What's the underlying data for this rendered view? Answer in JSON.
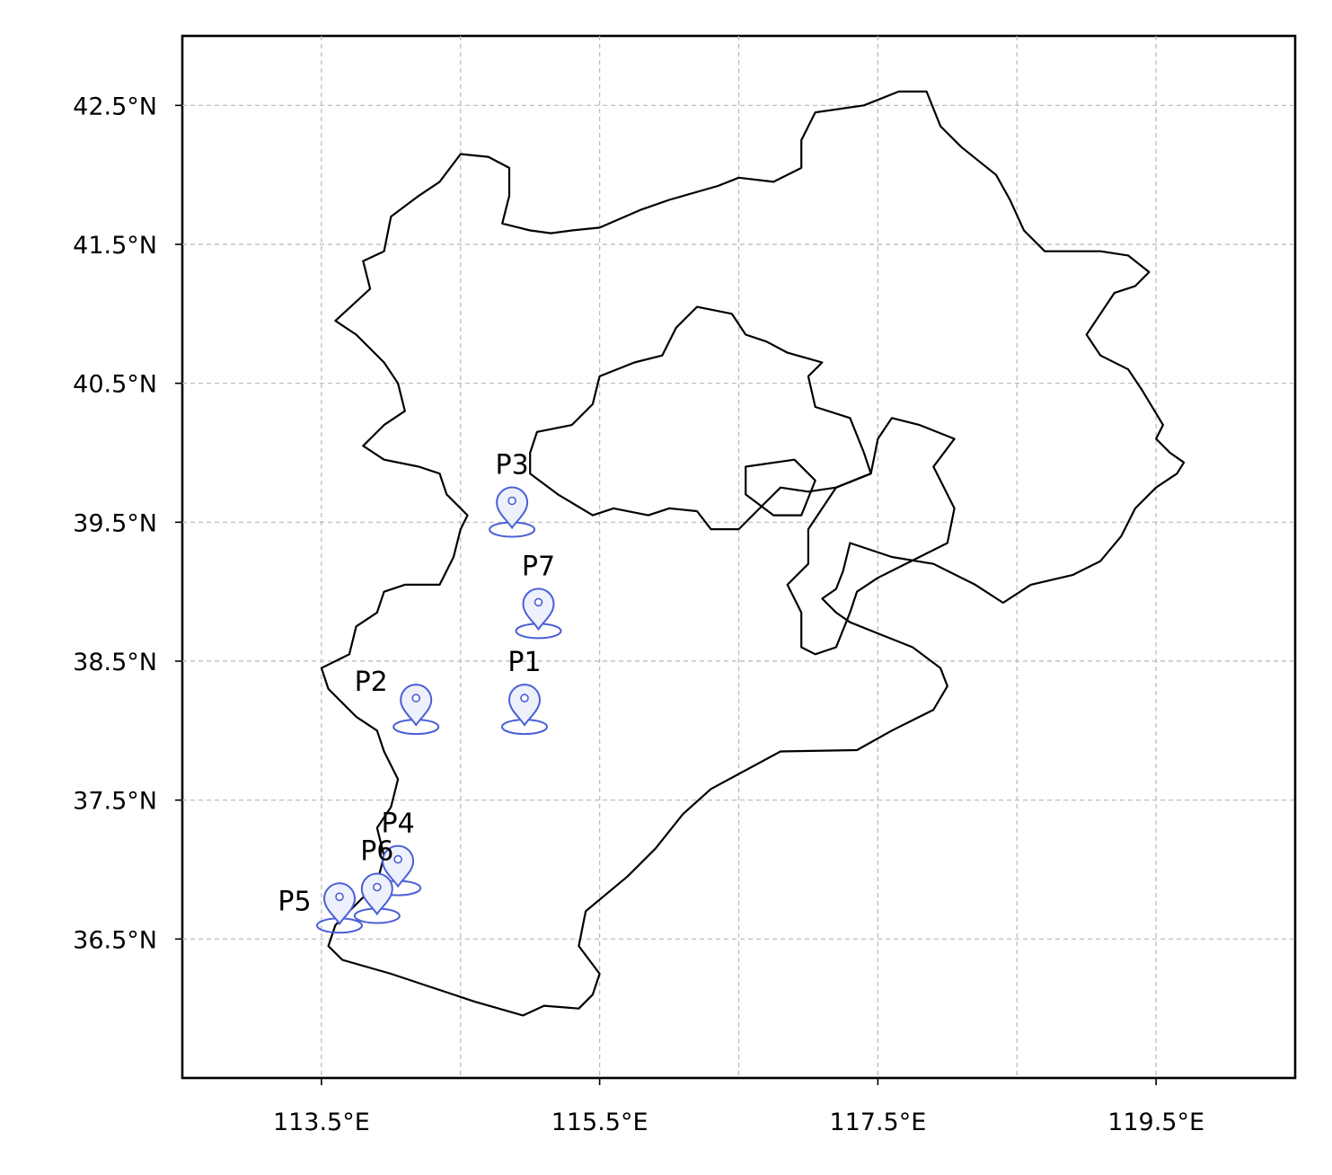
{
  "map": {
    "lon_range": [
      112.5,
      120.5
    ],
    "lat_range": [
      35.5,
      43.0
    ],
    "gridlines": true,
    "x_ticks": [
      {
        "value": 113.5,
        "label": "113.5°E"
      },
      {
        "value": 115.5,
        "label": "115.5°E"
      },
      {
        "value": 117.5,
        "label": "117.5°E"
      },
      {
        "value": 119.5,
        "label": "119.5°E"
      }
    ],
    "y_ticks": [
      {
        "value": 42.5,
        "label": "42.5°N"
      },
      {
        "value": 41.5,
        "label": "41.5°N"
      },
      {
        "value": 40.5,
        "label": "40.5°N"
      },
      {
        "value": 39.5,
        "label": "39.5°N"
      },
      {
        "value": 38.5,
        "label": "38.5°N"
      },
      {
        "value": 37.5,
        "label": "37.5°N"
      },
      {
        "value": 36.5,
        "label": "36.5°N"
      }
    ],
    "marker_icon": "map-pin-icon",
    "marker_color": "#4a5fd6",
    "boundaries": [
      {
        "name": "hebei-outline",
        "points": [
          [
            113.9,
            37.3
          ],
          [
            113.95,
            37.1
          ],
          [
            113.9,
            36.9
          ],
          [
            113.8,
            36.8
          ],
          [
            113.7,
            36.7
          ],
          [
            113.6,
            36.6
          ],
          [
            113.55,
            36.45
          ],
          [
            113.65,
            36.35
          ],
          [
            114.0,
            36.25
          ],
          [
            114.3,
            36.15
          ],
          [
            114.6,
            36.05
          ],
          [
            114.95,
            35.95
          ],
          [
            115.1,
            36.02
          ],
          [
            115.35,
            36.0
          ],
          [
            115.45,
            36.1
          ],
          [
            115.5,
            36.25
          ],
          [
            115.35,
            36.45
          ],
          [
            115.4,
            36.7
          ],
          [
            115.7,
            36.95
          ],
          [
            115.9,
            37.15
          ],
          [
            116.1,
            37.4
          ],
          [
            116.3,
            37.58
          ],
          [
            116.8,
            37.85
          ],
          [
            117.35,
            37.86
          ],
          [
            117.6,
            38.0
          ],
          [
            117.9,
            38.15
          ],
          [
            118.0,
            38.32
          ],
          [
            117.95,
            38.45
          ],
          [
            117.75,
            38.6
          ],
          [
            117.5,
            38.7
          ],
          [
            117.3,
            38.78
          ],
          [
            117.2,
            38.85
          ],
          [
            117.1,
            38.95
          ],
          [
            117.2,
            39.02
          ],
          [
            117.25,
            39.15
          ],
          [
            117.3,
            39.35
          ],
          [
            117.6,
            39.25
          ],
          [
            117.9,
            39.2
          ],
          [
            118.2,
            39.05
          ],
          [
            118.4,
            38.92
          ],
          [
            118.6,
            39.05
          ],
          [
            118.9,
            39.12
          ],
          [
            119.1,
            39.22
          ],
          [
            119.25,
            39.4
          ],
          [
            119.35,
            39.6
          ],
          [
            119.5,
            39.75
          ],
          [
            119.65,
            39.85
          ],
          [
            119.7,
            39.93
          ],
          [
            119.6,
            40.0
          ],
          [
            119.5,
            40.1
          ],
          [
            119.55,
            40.2
          ],
          [
            119.4,
            40.45
          ],
          [
            119.3,
            40.6
          ],
          [
            119.1,
            40.7
          ],
          [
            119.0,
            40.85
          ],
          [
            119.1,
            41.0
          ],
          [
            119.2,
            41.15
          ],
          [
            119.35,
            41.2
          ],
          [
            119.45,
            41.3
          ],
          [
            119.3,
            41.42
          ],
          [
            119.1,
            41.45
          ],
          [
            118.9,
            41.45
          ],
          [
            118.7,
            41.45
          ],
          [
            118.55,
            41.6
          ],
          [
            118.45,
            41.82
          ],
          [
            118.35,
            42.0
          ],
          [
            118.1,
            42.2
          ],
          [
            117.95,
            42.35
          ],
          [
            117.85,
            42.6
          ],
          [
            117.65,
            42.6
          ],
          [
            117.4,
            42.5
          ],
          [
            117.05,
            42.45
          ],
          [
            116.95,
            42.25
          ],
          [
            116.95,
            42.05
          ],
          [
            116.75,
            41.95
          ],
          [
            116.5,
            41.98
          ],
          [
            116.35,
            41.92
          ],
          [
            116.0,
            41.82
          ],
          [
            115.8,
            41.75
          ],
          [
            115.5,
            41.62
          ],
          [
            115.3,
            41.6
          ],
          [
            115.15,
            41.58
          ],
          [
            115.0,
            41.6
          ],
          [
            114.8,
            41.65
          ],
          [
            114.85,
            41.85
          ],
          [
            114.85,
            42.05
          ],
          [
            114.7,
            42.13
          ],
          [
            114.5,
            42.15
          ],
          [
            114.35,
            41.95
          ],
          [
            114.2,
            41.85
          ],
          [
            114.0,
            41.7
          ],
          [
            113.95,
            41.45
          ],
          [
            113.8,
            41.38
          ],
          [
            113.85,
            41.18
          ],
          [
            113.6,
            40.95
          ],
          [
            113.75,
            40.85
          ],
          [
            113.95,
            40.65
          ],
          [
            114.05,
            40.5
          ],
          [
            114.1,
            40.3
          ],
          [
            113.95,
            40.2
          ],
          [
            113.8,
            40.05
          ],
          [
            113.95,
            39.95
          ],
          [
            114.2,
            39.9
          ],
          [
            114.35,
            39.85
          ],
          [
            114.4,
            39.7
          ],
          [
            114.55,
            39.55
          ],
          [
            114.5,
            39.45
          ],
          [
            114.45,
            39.25
          ],
          [
            114.35,
            39.05
          ],
          [
            114.1,
            39.05
          ],
          [
            113.95,
            39.0
          ],
          [
            113.9,
            38.85
          ],
          [
            113.75,
            38.75
          ],
          [
            113.7,
            38.55
          ],
          [
            113.5,
            38.45
          ],
          [
            113.55,
            38.3
          ],
          [
            113.75,
            38.1
          ],
          [
            113.9,
            38.0
          ],
          [
            113.95,
            37.85
          ],
          [
            114.05,
            37.65
          ],
          [
            114.0,
            37.45
          ],
          [
            113.9,
            37.3
          ]
        ]
      },
      {
        "name": "beijing-outline",
        "points": [
          [
            115.45,
            39.55
          ],
          [
            115.6,
            39.6
          ],
          [
            115.85,
            39.55
          ],
          [
            116.0,
            39.6
          ],
          [
            116.2,
            39.58
          ],
          [
            116.3,
            39.45
          ],
          [
            116.5,
            39.45
          ],
          [
            116.65,
            39.6
          ],
          [
            116.8,
            39.75
          ],
          [
            117.0,
            39.72
          ],
          [
            117.2,
            39.75
          ],
          [
            117.45,
            39.85
          ],
          [
            117.4,
            40.0
          ],
          [
            117.3,
            40.25
          ],
          [
            117.05,
            40.33
          ],
          [
            117.0,
            40.55
          ],
          [
            117.1,
            40.65
          ],
          [
            116.85,
            40.72
          ],
          [
            116.7,
            40.8
          ],
          [
            116.55,
            40.85
          ],
          [
            116.45,
            41.0
          ],
          [
            116.2,
            41.05
          ],
          [
            116.05,
            40.9
          ],
          [
            115.95,
            40.7
          ],
          [
            115.75,
            40.65
          ],
          [
            115.5,
            40.55
          ],
          [
            115.45,
            40.35
          ],
          [
            115.3,
            40.2
          ],
          [
            115.05,
            40.15
          ],
          [
            115.0,
            40.0
          ],
          [
            115.0,
            39.85
          ],
          [
            115.2,
            39.7
          ],
          [
            115.45,
            39.55
          ]
        ]
      },
      {
        "name": "tianjin-outline",
        "points": [
          [
            117.2,
            39.75
          ],
          [
            117.45,
            39.85
          ],
          [
            117.5,
            40.1
          ],
          [
            117.6,
            40.25
          ],
          [
            117.8,
            40.2
          ],
          [
            118.05,
            40.1
          ],
          [
            117.9,
            39.9
          ],
          [
            118.05,
            39.6
          ],
          [
            118.0,
            39.35
          ],
          [
            117.8,
            39.25
          ],
          [
            117.5,
            39.1
          ],
          [
            117.35,
            39.0
          ],
          [
            117.3,
            38.85
          ],
          [
            117.2,
            38.6
          ],
          [
            117.05,
            38.55
          ],
          [
            116.95,
            38.6
          ],
          [
            116.95,
            38.85
          ],
          [
            116.85,
            39.05
          ],
          [
            117.0,
            39.2
          ],
          [
            117.0,
            39.45
          ],
          [
            117.1,
            39.6
          ],
          [
            117.2,
            39.75
          ]
        ]
      },
      {
        "name": "hebei-exclave-outline",
        "points": [
          [
            116.55,
            39.9
          ],
          [
            116.9,
            39.95
          ],
          [
            117.05,
            39.8
          ],
          [
            116.95,
            39.55
          ],
          [
            116.75,
            39.55
          ],
          [
            116.55,
            39.7
          ],
          [
            116.55,
            39.9
          ]
        ]
      }
    ],
    "markers": [
      {
        "label": "P1",
        "lon": 114.96,
        "lat": 38.04
      },
      {
        "label": "P2",
        "lon": 114.18,
        "lat": 38.04
      },
      {
        "label": "P3",
        "lon": 114.87,
        "lat": 39.46
      },
      {
        "label": "P4",
        "lon": 114.05,
        "lat": 36.88
      },
      {
        "label": "P5",
        "lon": 113.63,
        "lat": 36.61
      },
      {
        "label": "P6",
        "lon": 113.9,
        "lat": 36.68
      },
      {
        "label": "P7",
        "lon": 115.06,
        "lat": 38.73
      }
    ]
  }
}
